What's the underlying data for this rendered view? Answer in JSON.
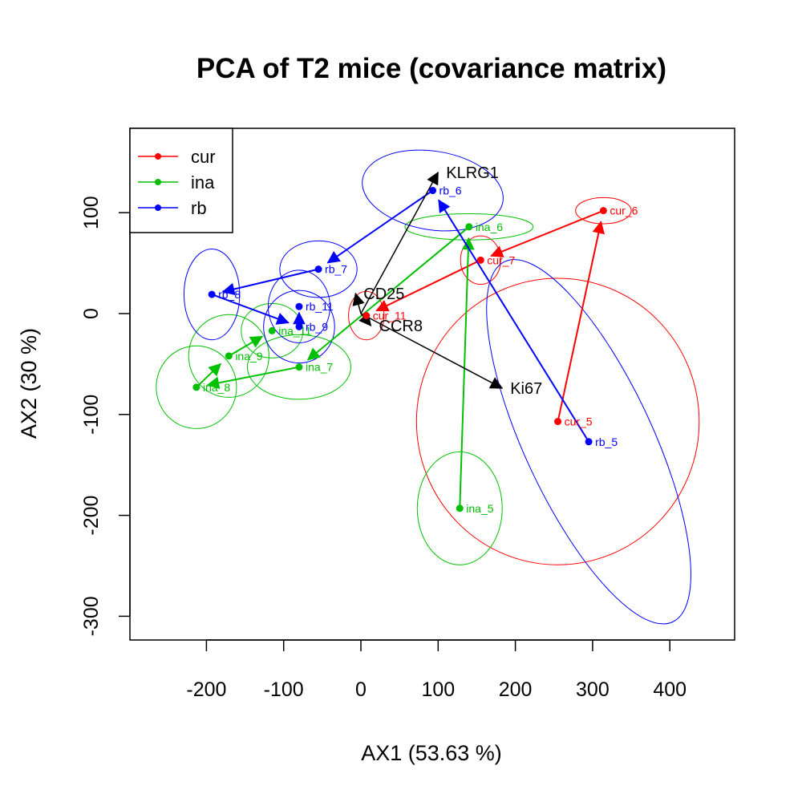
{
  "chart_data": {
    "type": "scatter",
    "title": "PCA of T2 mice (covariance matrix)",
    "xlabel": "AX1 (53.63 %)",
    "ylabel": "AX2 (30 %)",
    "xlim": [
      -300,
      480
    ],
    "ylim": [
      -322,
      185
    ],
    "xticks": [
      -200,
      -100,
      0,
      100,
      200,
      300,
      400
    ],
    "xtick_labels": [
      "-200",
      "-100",
      "0",
      "100",
      "200",
      "300",
      "400"
    ],
    "yticks": [
      -300,
      -200,
      -100,
      0,
      100
    ],
    "ytick_labels": [
      "-300",
      "-200",
      "-100",
      "0",
      "100"
    ],
    "grid": false,
    "legend_position": "top-left",
    "series": [
      {
        "name": "cur",
        "color": "#FF0000",
        "path": [
          "cur_5",
          "cur_6",
          "cur_7",
          "cur_11"
        ],
        "points": [
          {
            "label": "cur_5",
            "x": 255,
            "y": -107,
            "ellipse": {
              "rx": 183,
              "ry": 142,
              "angle": 0
            }
          },
          {
            "label": "cur_6",
            "x": 314,
            "y": 102,
            "ellipse": {
              "rx": 36,
              "ry": 13,
              "angle": 0
            }
          },
          {
            "label": "cur_7",
            "x": 155,
            "y": 53,
            "ellipse": {
              "rx": 26,
              "ry": 24,
              "angle": 0
            }
          },
          {
            "label": "cur_11",
            "x": 7,
            "y": -2,
            "ellipse": {
              "rx": 23,
              "ry": 24,
              "angle": 0
            }
          }
        ]
      },
      {
        "name": "ina",
        "color": "#00C000",
        "path": [
          "ina_5",
          "ina_6",
          "ina_7",
          "ina_8",
          "ina_9",
          "ina_11"
        ],
        "points": [
          {
            "label": "ina_5",
            "x": 128,
            "y": -193,
            "ellipse": {
              "rx": 55,
              "ry": 56,
              "angle": 0
            }
          },
          {
            "label": "ina_6",
            "x": 140,
            "y": 86,
            "ellipse": {
              "rx": 83,
              "ry": 13,
              "angle": 0
            }
          },
          {
            "label": "ina_7",
            "x": -80,
            "y": -53,
            "ellipse": {
              "rx": 67,
              "ry": 32,
              "angle": 0
            }
          },
          {
            "label": "ina_8",
            "x": -213,
            "y": -73,
            "ellipse": {
              "rx": 52,
              "ry": 41,
              "angle": 0
            }
          },
          {
            "label": "ina_9",
            "x": -171,
            "y": -42,
            "ellipse": {
              "rx": 52,
              "ry": 41,
              "angle": 0
            }
          },
          {
            "label": "ina_11",
            "x": -115,
            "y": -17,
            "ellipse": {
              "rx": 40,
              "ry": 27,
              "angle": 0
            }
          }
        ]
      },
      {
        "name": "rb",
        "color": "#0000FF",
        "path": [
          "rb_5",
          "rb_6",
          "rb_7",
          "rb_8",
          "rb_9",
          "rb_11"
        ],
        "points": [
          {
            "label": "rb_5",
            "x": 295,
            "y": -127,
            "ellipse": {
              "rx": 83,
              "ry": 197,
              "angle": -25
            }
          },
          {
            "label": "rb_6",
            "x": 93,
            "y": 122,
            "ellipse": {
              "rx": 92,
              "ry": 39,
              "angle": 9
            }
          },
          {
            "label": "rb_7",
            "x": -55,
            "y": 44,
            "ellipse": {
              "rx": 50,
              "ry": 28,
              "angle": 0
            }
          },
          {
            "label": "rb_8",
            "x": -193,
            "y": 19,
            "ellipse": {
              "rx": 36,
              "ry": 45,
              "angle": 0
            }
          },
          {
            "label": "rb_9",
            "x": -80,
            "y": -13,
            "ellipse": {
              "rx": 46,
              "ry": 36,
              "angle": 0
            }
          },
          {
            "label": "rb_11",
            "x": -80,
            "y": 7,
            "ellipse": {
              "rx": 40,
              "ry": 36,
              "angle": 0
            }
          }
        ]
      }
    ],
    "variables": [
      {
        "label": "KLRG1",
        "x": 100,
        "y": 140
      },
      {
        "label": "Ki67",
        "x": 183,
        "y": -74
      },
      {
        "label": "CD25",
        "x": -7,
        "y": 20
      },
      {
        "label": "CCR8",
        "x": 13,
        "y": -12
      }
    ]
  }
}
